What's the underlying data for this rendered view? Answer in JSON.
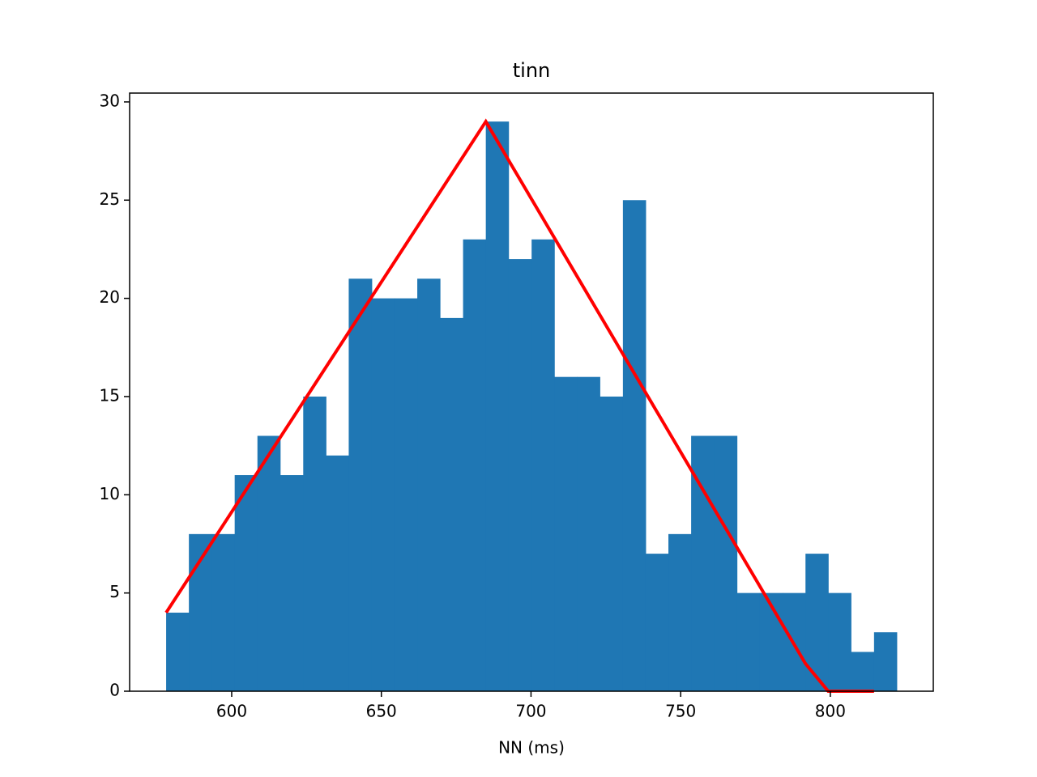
{
  "chart_data": {
    "type": "histogram",
    "title": "tinn",
    "xlabel": "NN (ms)",
    "xlim": [
      565.9,
      834.4
    ],
    "ylim": [
      0,
      30.45
    ],
    "xticks": [
      600,
      650,
      700,
      750,
      800
    ],
    "yticks": [
      0,
      5,
      10,
      15,
      20,
      25,
      30
    ],
    "series": [
      {
        "type": "histogram",
        "color": "#1f77b4",
        "bins": [
          578.1,
          585.7,
          593.4,
          601.0,
          608.6,
          616.2,
          623.9,
          631.5,
          639.1,
          646.8,
          654.4,
          662.0,
          669.6,
          677.3,
          684.9,
          692.5,
          700.2,
          707.8,
          715.4,
          723.0,
          730.7,
          738.3,
          745.9,
          753.5,
          761.2,
          768.8,
          776.4,
          784.1,
          791.7,
          799.3,
          806.9,
          814.6,
          822.2
        ],
        "values": [
          4,
          8,
          8,
          11,
          13,
          11,
          15,
          12,
          21,
          20,
          20,
          21,
          19,
          23,
          29,
          22,
          23,
          16,
          16,
          15,
          25,
          7,
          8,
          13,
          13,
          5,
          5,
          5,
          7,
          5,
          2,
          3
        ]
      },
      {
        "type": "line",
        "color": "#ff0000",
        "x": [
          578.1,
          684.9,
          791.7,
          799.3,
          814.6
        ],
        "values": [
          4,
          29,
          1.4,
          0,
          0
        ]
      }
    ]
  }
}
